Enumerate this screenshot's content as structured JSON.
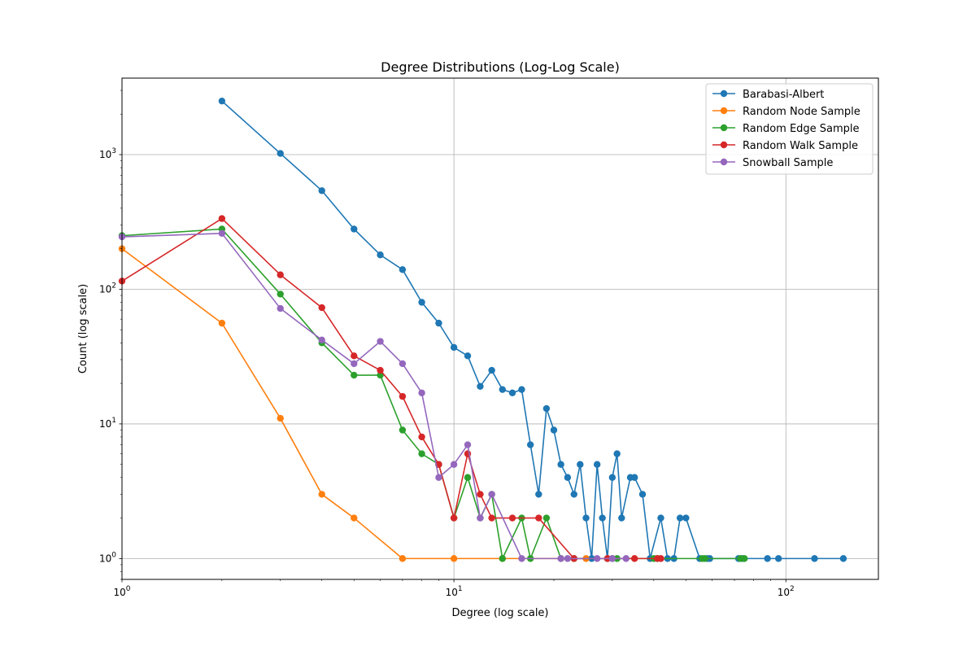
{
  "chart_data": {
    "type": "line",
    "title": "Degree Distributions (Log-Log Scale)",
    "xlabel": "Degree (log scale)",
    "ylabel": "Count (log scale)",
    "xscale": "log",
    "yscale": "log",
    "xlim": [
      1,
      190
    ],
    "ylim": [
      0.7,
      3700
    ],
    "grid": true,
    "legend_position": "top-right",
    "xticks": [
      {
        "value": 1,
        "base": "10",
        "exp": "0"
      },
      {
        "value": 10,
        "base": "10",
        "exp": "1"
      },
      {
        "value": 100,
        "base": "10",
        "exp": "2"
      }
    ],
    "yticks": [
      {
        "value": 1,
        "base": "10",
        "exp": "0"
      },
      {
        "value": 10,
        "base": "10",
        "exp": "1"
      },
      {
        "value": 100,
        "base": "10",
        "exp": "2"
      },
      {
        "value": 1000,
        "base": "10",
        "exp": "3"
      }
    ],
    "series": [
      {
        "name": "Barabasi-Albert",
        "color": "#1f77b4",
        "x": [
          2,
          3,
          4,
          5,
          6,
          7,
          8,
          9,
          10,
          11,
          12,
          13,
          14,
          15,
          16,
          17,
          18,
          19,
          20,
          21,
          22,
          23,
          24,
          25,
          26,
          27,
          28,
          29,
          30,
          31,
          32,
          34,
          35,
          37,
          39,
          42,
          44,
          46,
          48,
          50,
          55,
          58,
          59,
          72,
          74,
          88,
          95,
          122,
          149
        ],
        "y": [
          2500,
          1020,
          540,
          280,
          180,
          140,
          80,
          56,
          37,
          32,
          19,
          25,
          18,
          17,
          18,
          7,
          3,
          13,
          9,
          5,
          4,
          3,
          5,
          2,
          1,
          5,
          2,
          1,
          4,
          6,
          2,
          4,
          4,
          3,
          1,
          2,
          1,
          1,
          2,
          2,
          1,
          1,
          1,
          1,
          1,
          1,
          1,
          1,
          1
        ]
      },
      {
        "name": "Random Node Sample",
        "color": "#ff7f0e",
        "x": [
          1,
          2,
          3,
          4,
          5,
          7,
          10,
          14,
          25
        ],
        "y": [
          200,
          56,
          11,
          3,
          2,
          1,
          1,
          1,
          1
        ]
      },
      {
        "name": "Random Edge Sample",
        "color": "#2ca02c",
        "x": [
          1,
          2,
          3,
          4,
          5,
          6,
          7,
          8,
          9,
          10,
          11,
          12,
          13,
          14,
          16,
          17,
          19,
          21,
          23,
          30,
          31,
          40,
          41,
          56,
          57,
          73,
          75
        ],
        "y": [
          250,
          280,
          92,
          40,
          23,
          23,
          9,
          6,
          5,
          2,
          4,
          2,
          3,
          1,
          2,
          1,
          2,
          1,
          1,
          1,
          1,
          1,
          1,
          1,
          1,
          1,
          1
        ]
      },
      {
        "name": "Random Walk Sample",
        "color": "#d62728",
        "x": [
          1,
          2,
          3,
          4,
          5,
          6,
          7,
          8,
          9,
          10,
          11,
          12,
          13,
          15,
          18,
          23,
          29,
          35,
          41,
          42
        ],
        "y": [
          115,
          335,
          128,
          73,
          32,
          25,
          16,
          8,
          5,
          2,
          6,
          3,
          2,
          2,
          2,
          1,
          1,
          1,
          1,
          1
        ]
      },
      {
        "name": "Snowball Sample",
        "color": "#9467bd",
        "x": [
          1,
          2,
          3,
          4,
          5,
          6,
          7,
          8,
          9,
          10,
          11,
          12,
          13,
          16,
          21,
          22,
          27,
          30,
          33
        ],
        "y": [
          245,
          260,
          72,
          42,
          28,
          41,
          28,
          17,
          4,
          5,
          7,
          2,
          3,
          1,
          1,
          1,
          1,
          1,
          1
        ]
      }
    ]
  }
}
